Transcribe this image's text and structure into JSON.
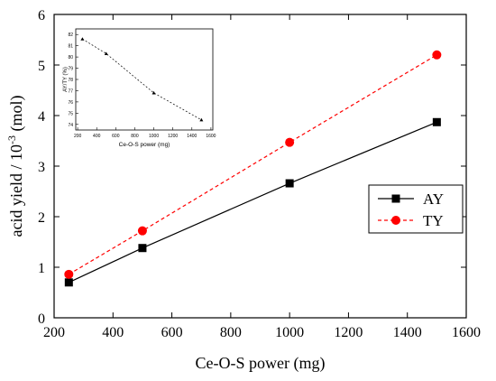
{
  "chart_data": [
    {
      "type": "line",
      "xlabel": "Ce-O-S power (mg)",
      "ylabel_prefix": "acid yield / 10",
      "ylabel_exp": "-3",
      "ylabel_suffix": " (mol)",
      "xlim": [
        200,
        1600
      ],
      "ylim": [
        0,
        6
      ],
      "xticks": [
        200,
        400,
        600,
        800,
        1000,
        1200,
        1400,
        1600
      ],
      "yticks": [
        0,
        1,
        2,
        3,
        4,
        5,
        6
      ],
      "legend_position": "right",
      "series": [
        {
          "name": "AY",
          "color": "#000000",
          "marker": "square",
          "dash": "solid",
          "x": [
            250,
            500,
            1000,
            1500
          ],
          "y": [
            0.7,
            1.38,
            2.66,
            3.87
          ]
        },
        {
          "name": "TY",
          "color": "#ff0000",
          "marker": "circle",
          "dash": "dashed",
          "x": [
            250,
            500,
            1000,
            1500
          ],
          "y": [
            0.86,
            1.72,
            3.47,
            5.2
          ]
        }
      ]
    },
    {
      "type": "line",
      "position": "inset-top-left",
      "xlabel": "Ce-O-S power (mg)",
      "ylabel": "AY/TY (%)",
      "xlim": [
        180,
        1620
      ],
      "ylim": [
        73.5,
        82.5
      ],
      "xticks": [
        200,
        400,
        600,
        800,
        1000,
        1200,
        1400,
        1600
      ],
      "xtick_labels": [
        "200",
        "400",
        "600",
        "800",
        "1000",
        "1200",
        "1400",
        "1600"
      ],
      "yticks": [
        74,
        75,
        76,
        77,
        78,
        79,
        80,
        81,
        82
      ],
      "series": [
        {
          "color": "#000000",
          "marker": "triangle",
          "dash": "dashed",
          "x": [
            250,
            500,
            1000,
            1500
          ],
          "y": [
            81.6,
            80.3,
            76.8,
            74.4
          ]
        }
      ]
    }
  ]
}
